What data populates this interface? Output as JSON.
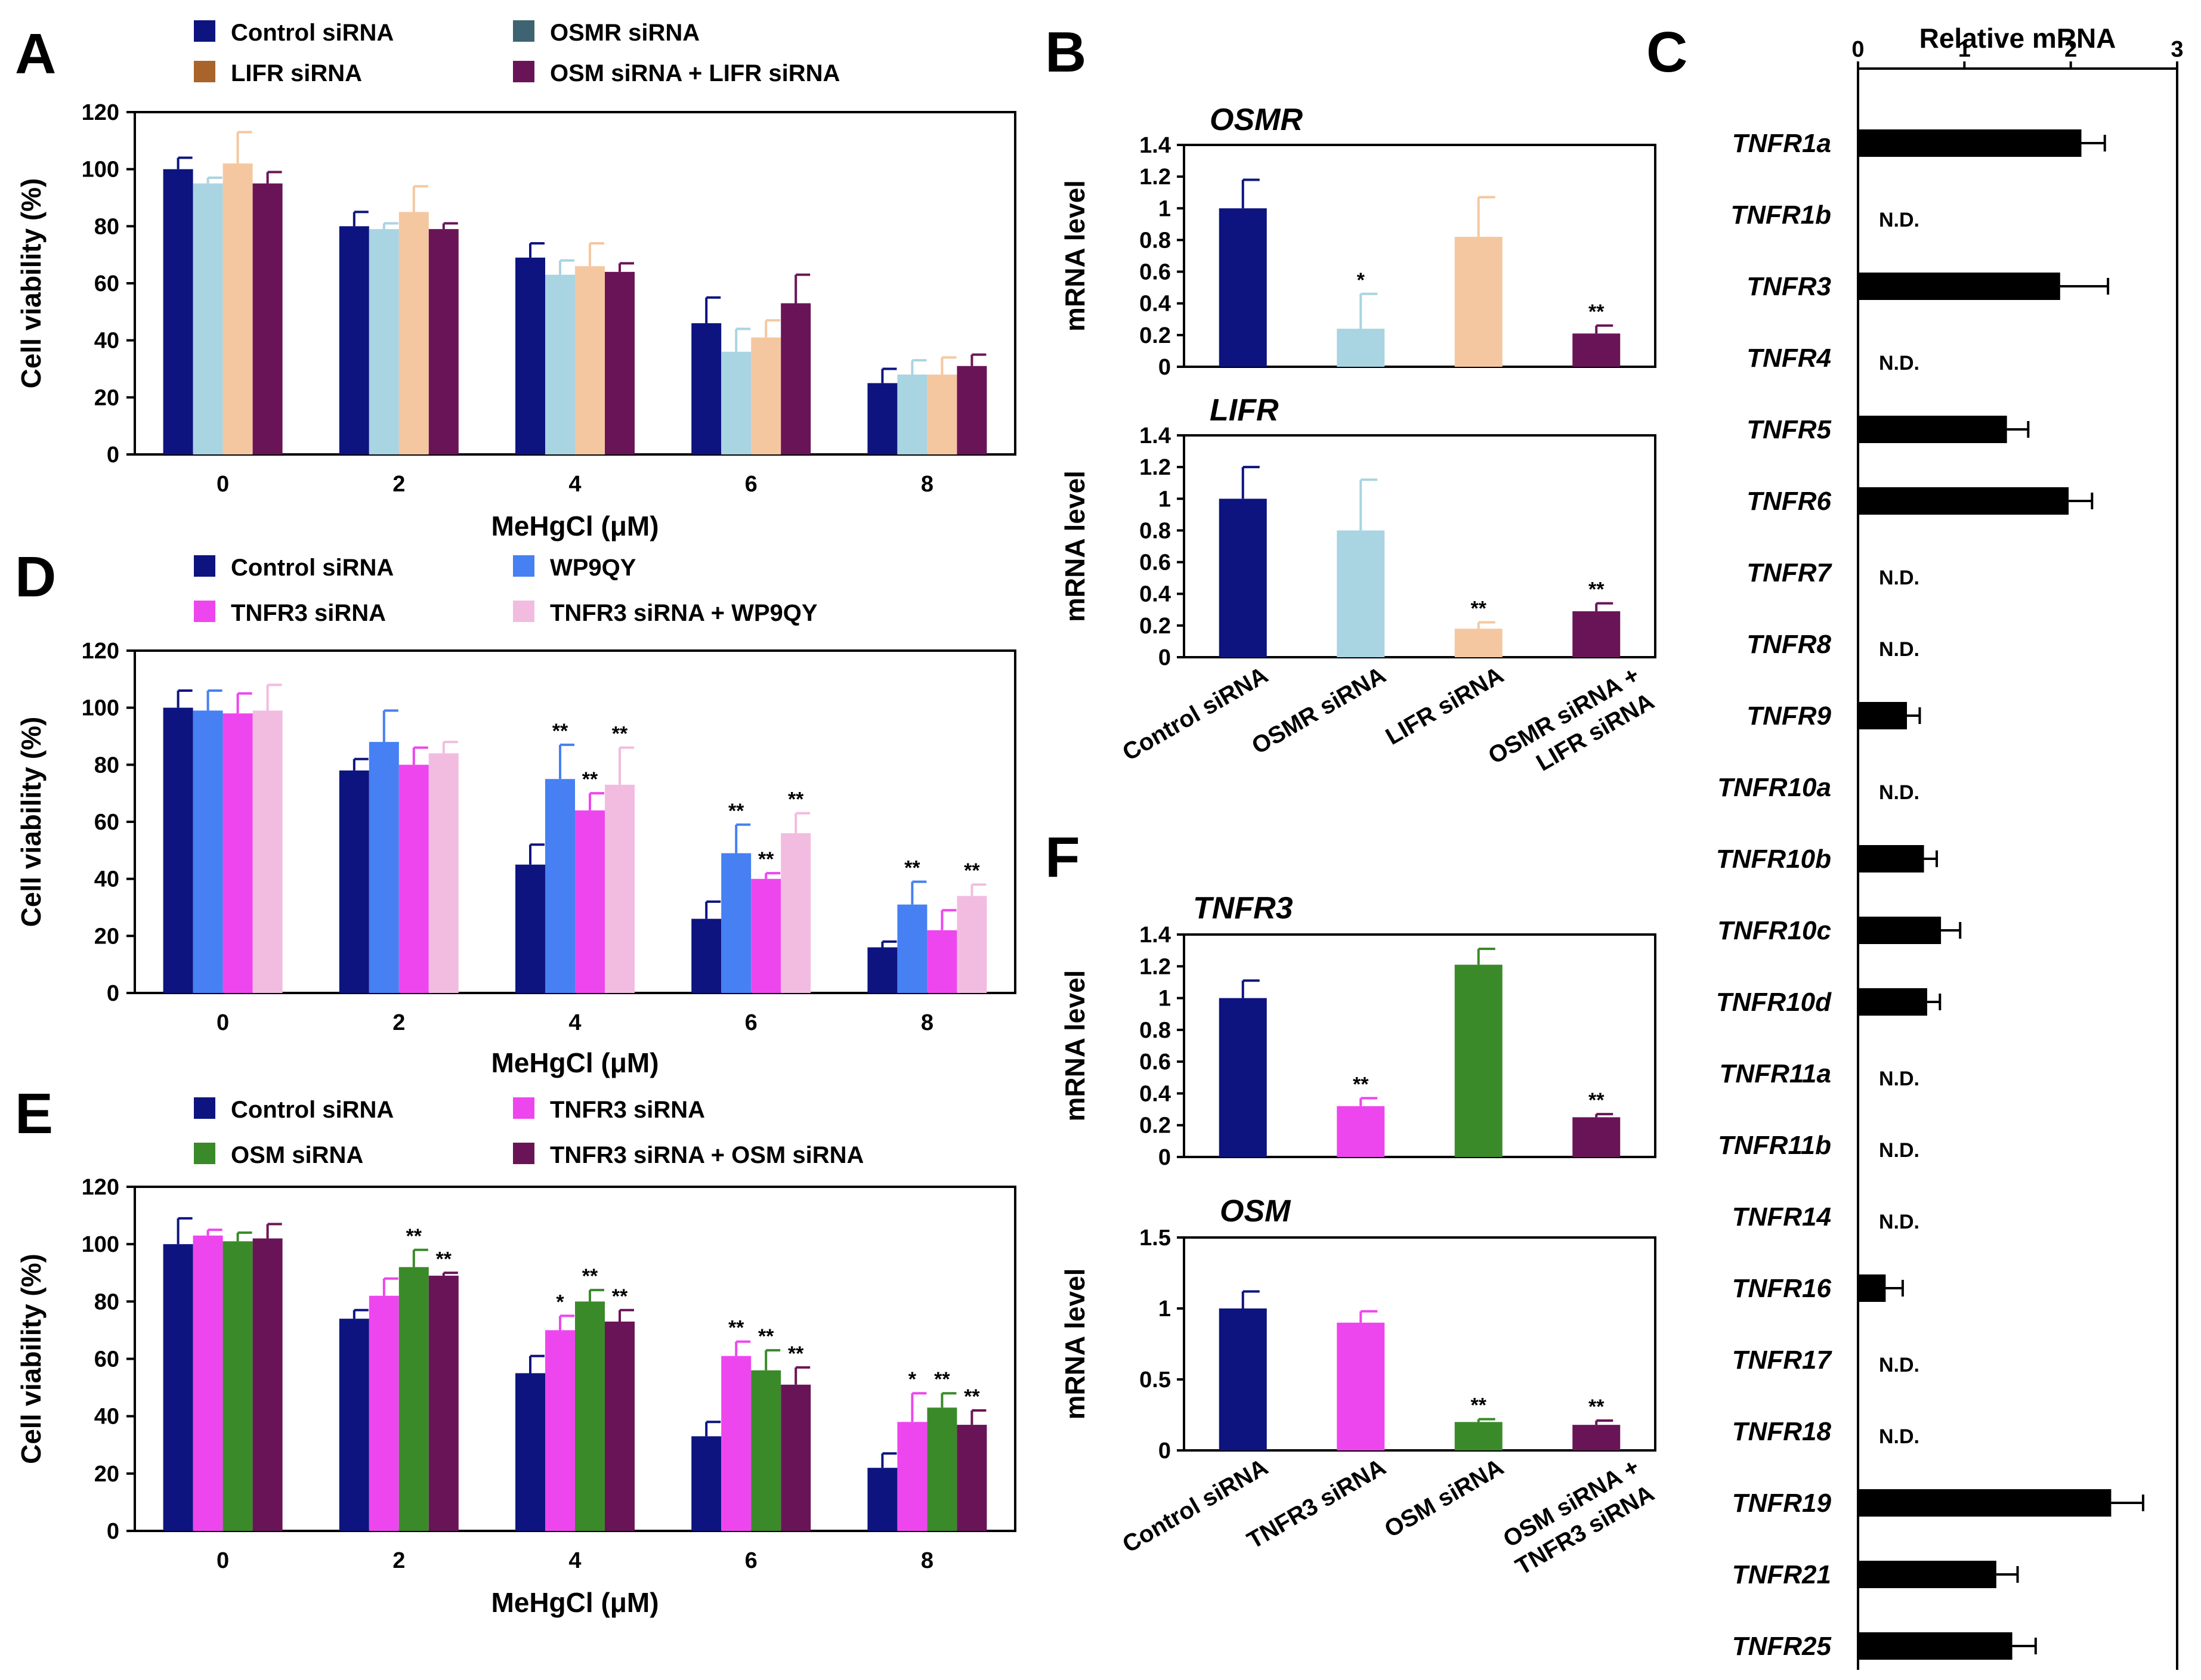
{
  "colors": {
    "navy": "#0d147f",
    "lightblue": "#a9d4e2",
    "peach": "#f5c7a0",
    "purple": "#6a1458",
    "blue": "#4680f2",
    "magenta": "#ee46ee",
    "pink": "#f2bce0",
    "green": "#3a8a2a",
    "legend_osmr": "#3d6470",
    "legend_lifr": "#a8642a",
    "black": "#000000"
  },
  "chart_data": [
    {
      "id": "A",
      "letter": "A",
      "type": "bar",
      "categories": [
        "0",
        "2",
        "4",
        "6",
        "8"
      ],
      "xlabel": "MeHgCl (μM)",
      "ylabel": "Cell viability (%)",
      "ylim": [
        0,
        120
      ],
      "yticks": [
        "0",
        "20",
        "40",
        "60",
        "80",
        "100",
        "120"
      ],
      "legend": [
        {
          "label": "Control siRNA",
          "color": "#0d147f"
        },
        {
          "label": "OSMR siRNA",
          "color": "#3d6470"
        },
        {
          "label": "LIFR siRNA",
          "color": "#a8642a"
        },
        {
          "label": "OSM siRNA + LIFR siRNA",
          "color": "#6a1458"
        }
      ],
      "series": [
        {
          "name": "Control siRNA",
          "color": "#0d147f",
          "values": [
            100,
            80,
            69,
            46,
            25
          ],
          "errors": [
            4,
            5,
            5,
            9,
            5
          ],
          "stars": [
            "",
            "",
            "",
            "",
            ""
          ]
        },
        {
          "name": "OSMR siRNA",
          "color": "#a9d4e2",
          "values": [
            95,
            79,
            63,
            36,
            28
          ],
          "errors": [
            2,
            2,
            5,
            8,
            5
          ],
          "stars": [
            "",
            "",
            "",
            "",
            ""
          ]
        },
        {
          "name": "LIFR siRNA",
          "color": "#f5c7a0",
          "values": [
            102,
            85,
            66,
            41,
            28
          ],
          "errors": [
            11,
            9,
            8,
            6,
            6
          ],
          "stars": [
            "",
            "",
            "",
            "",
            ""
          ]
        },
        {
          "name": "OSM siRNA + LIFR siRNA",
          "color": "#6a1458",
          "values": [
            95,
            79,
            64,
            53,
            31
          ],
          "errors": [
            4,
            2,
            3,
            10,
            4
          ],
          "stars": [
            "",
            "",
            "",
            "",
            ""
          ]
        }
      ]
    },
    {
      "id": "D",
      "letter": "D",
      "type": "bar",
      "categories": [
        "0",
        "2",
        "4",
        "6",
        "8"
      ],
      "xlabel": "MeHgCl (μM)",
      "ylabel": "Cell viability (%)",
      "ylim": [
        0,
        120
      ],
      "yticks": [
        "0",
        "20",
        "40",
        "60",
        "80",
        "100",
        "120"
      ],
      "legend": [
        {
          "label": "Control siRNA",
          "color": "#0d147f"
        },
        {
          "label": "WP9QY",
          "color": "#4680f2"
        },
        {
          "label": "TNFR3 siRNA",
          "color": "#ee46ee"
        },
        {
          "label": "TNFR3 siRNA + WP9QY",
          "color": "#f2bce0"
        }
      ],
      "series": [
        {
          "name": "Control siRNA",
          "color": "#0d147f",
          "values": [
            100,
            78,
            45,
            26,
            16
          ],
          "errors": [
            6,
            4,
            7,
            6,
            2
          ],
          "stars": [
            "",
            "",
            "",
            "",
            ""
          ]
        },
        {
          "name": "WP9QY",
          "color": "#4680f2",
          "values": [
            99,
            88,
            75,
            49,
            31
          ],
          "errors": [
            7,
            11,
            12,
            10,
            8
          ],
          "stars": [
            "",
            "",
            "**",
            "**",
            "**"
          ]
        },
        {
          "name": "TNFR3 siRNA",
          "color": "#ee46ee",
          "values": [
            98,
            80,
            64,
            40,
            22
          ],
          "errors": [
            7,
            6,
            6,
            2,
            7
          ],
          "stars": [
            "",
            "",
            "**",
            "**",
            ""
          ]
        },
        {
          "name": "TNFR3 siRNA + WP9QY",
          "color": "#f2bce0",
          "values": [
            99,
            84,
            73,
            56,
            34
          ],
          "errors": [
            9,
            4,
            13,
            7,
            4
          ],
          "stars": [
            "",
            "",
            "**",
            "**",
            "**"
          ]
        }
      ]
    },
    {
      "id": "E",
      "letter": "E",
      "type": "bar",
      "categories": [
        "0",
        "2",
        "4",
        "6",
        "8"
      ],
      "xlabel": "MeHgCl (μM)",
      "ylabel": "Cell viability (%)",
      "ylim": [
        0,
        120
      ],
      "yticks": [
        "0",
        "20",
        "40",
        "60",
        "80",
        "100",
        "120"
      ],
      "legend": [
        {
          "label": "Control siRNA",
          "color": "#0d147f"
        },
        {
          "label": "TNFR3 siRNA",
          "color": "#ee46ee"
        },
        {
          "label": "OSM siRNA",
          "color": "#3a8a2a"
        },
        {
          "label": "TNFR3 siRNA + OSM siRNA",
          "color": "#6a1458"
        }
      ],
      "series": [
        {
          "name": "Control siRNA",
          "color": "#0d147f",
          "values": [
            100,
            74,
            55,
            33,
            22
          ],
          "errors": [
            9,
            3,
            6,
            5,
            5
          ],
          "stars": [
            "",
            "",
            "",
            "",
            ""
          ]
        },
        {
          "name": "TNFR3 siRNA",
          "color": "#ee46ee",
          "values": [
            103,
            82,
            70,
            61,
            38
          ],
          "errors": [
            2,
            6,
            5,
            5,
            10
          ],
          "stars": [
            "",
            "",
            "*",
            "**",
            "*"
          ]
        },
        {
          "name": "OSM siRNA",
          "color": "#3a8a2a",
          "values": [
            101,
            92,
            80,
            56,
            43
          ],
          "errors": [
            3,
            6,
            4,
            7,
            5
          ],
          "stars": [
            "",
            "**",
            "**",
            "**",
            "**"
          ]
        },
        {
          "name": "TNFR3 siRNA + OSM siRNA",
          "color": "#6a1458",
          "values": [
            102,
            89,
            73,
            51,
            37
          ],
          "errors": [
            5,
            1,
            4,
            6,
            5
          ],
          "stars": [
            "",
            "**",
            "**",
            "**",
            "**"
          ]
        }
      ]
    },
    {
      "id": "B1",
      "letter": "B",
      "type": "bar",
      "title": "OSMR",
      "ylabel": "mRNA level",
      "ylim": [
        0,
        1.4
      ],
      "yticks": [
        "0",
        "0.2",
        "0.4",
        "0.6",
        "0.8",
        "1",
        "1.2",
        "1.4"
      ],
      "bars": [
        {
          "value": 1.0,
          "error": 0.18,
          "color": "#0d147f",
          "star": ""
        },
        {
          "value": 0.24,
          "error": 0.22,
          "color": "#a9d4e2",
          "star": "*"
        },
        {
          "value": 0.82,
          "error": 0.25,
          "color": "#f5c7a0",
          "star": ""
        },
        {
          "value": 0.21,
          "error": 0.05,
          "color": "#6a1458",
          "star": "**"
        }
      ]
    },
    {
      "id": "B2",
      "letter": "",
      "type": "bar",
      "title": "LIFR",
      "ylabel": "mRNA level",
      "ylim": [
        0,
        1.4
      ],
      "yticks": [
        "0",
        "0.2",
        "0.4",
        "0.6",
        "0.8",
        "1",
        "1.2",
        "1.4"
      ],
      "categories": [
        "Control siRNA",
        "OSMR siRNA",
        "LIFR siRNA",
        "OSMR siRNA +",
        "LIFR siRNA"
      ],
      "bars": [
        {
          "value": 1.0,
          "error": 0.2,
          "color": "#0d147f",
          "star": ""
        },
        {
          "value": 0.8,
          "error": 0.32,
          "color": "#a9d4e2",
          "star": ""
        },
        {
          "value": 0.18,
          "error": 0.04,
          "color": "#f5c7a0",
          "star": "**"
        },
        {
          "value": 0.29,
          "error": 0.05,
          "color": "#6a1458",
          "star": "**"
        }
      ]
    },
    {
      "id": "F1",
      "letter": "F",
      "type": "bar",
      "title": "TNFR3",
      "ylabel": "mRNA level",
      "ylim": [
        0,
        1.4
      ],
      "yticks": [
        "0",
        "0.2",
        "0.4",
        "0.6",
        "0.8",
        "1",
        "1.2",
        "1.4"
      ],
      "bars": [
        {
          "value": 1.0,
          "error": 0.11,
          "color": "#0d147f",
          "star": ""
        },
        {
          "value": 0.32,
          "error": 0.05,
          "color": "#ee46ee",
          "star": "**"
        },
        {
          "value": 1.21,
          "error": 0.1,
          "color": "#3a8a2a",
          "star": ""
        },
        {
          "value": 0.25,
          "error": 0.02,
          "color": "#6a1458",
          "star": "**"
        }
      ]
    },
    {
      "id": "F2",
      "letter": "",
      "type": "bar",
      "title": "OSM",
      "ylabel": "mRNA level",
      "ylim": [
        0,
        1.5
      ],
      "yticks": [
        "0",
        "0.5",
        "1",
        "1.5"
      ],
      "categories": [
        "Control siRNA",
        "TNFR3 siRNA",
        "OSM siRNA",
        "OSM siRNA +",
        "TNFR3 siRNA"
      ],
      "bars": [
        {
          "value": 1.0,
          "error": 0.12,
          "color": "#0d147f",
          "star": ""
        },
        {
          "value": 0.9,
          "error": 0.08,
          "color": "#ee46ee",
          "star": ""
        },
        {
          "value": 0.2,
          "error": 0.02,
          "color": "#3a8a2a",
          "star": "**"
        },
        {
          "value": 0.18,
          "error": 0.03,
          "color": "#6a1458",
          "star": "**"
        }
      ]
    },
    {
      "id": "C",
      "letter": "C",
      "type": "bar",
      "orientation": "horizontal",
      "xlabel": "Relative mRNA",
      "xlim": [
        0,
        3
      ],
      "xticks": [
        "0",
        "1",
        "2",
        "3"
      ],
      "nd_label": "N.D.",
      "rows": [
        {
          "label": "TNFR1a",
          "value": 2.1,
          "error": 0.22
        },
        {
          "label": "TNFR1b",
          "value": null,
          "error": null
        },
        {
          "label": "TNFR3",
          "value": 1.9,
          "error": 0.45
        },
        {
          "label": "TNFR4",
          "value": null,
          "error": null
        },
        {
          "label": "TNFR5",
          "value": 1.4,
          "error": 0.2
        },
        {
          "label": "TNFR6",
          "value": 1.98,
          "error": 0.22
        },
        {
          "label": "TNFR7",
          "value": null,
          "error": null
        },
        {
          "label": "TNFR8",
          "value": null,
          "error": null
        },
        {
          "label": "TNFR9",
          "value": 0.46,
          "error": 0.12
        },
        {
          "label": "TNFR10a",
          "value": null,
          "error": null
        },
        {
          "label": "TNFR10b",
          "value": 0.62,
          "error": 0.12
        },
        {
          "label": "TNFR10c",
          "value": 0.78,
          "error": 0.18
        },
        {
          "label": "TNFR10d",
          "value": 0.65,
          "error": 0.12
        },
        {
          "label": "TNFR11a",
          "value": null,
          "error": null
        },
        {
          "label": "TNFR11b",
          "value": null,
          "error": null
        },
        {
          "label": "TNFR14",
          "value": null,
          "error": null
        },
        {
          "label": "TNFR16",
          "value": 0.26,
          "error": 0.16
        },
        {
          "label": "TNFR17",
          "value": null,
          "error": null
        },
        {
          "label": "TNFR18",
          "value": null,
          "error": null
        },
        {
          "label": "TNFR19",
          "value": 2.38,
          "error": 0.3
        },
        {
          "label": "TNFR21",
          "value": 1.3,
          "error": 0.2
        },
        {
          "label": "TNFR25",
          "value": 1.45,
          "error": 0.22
        }
      ]
    }
  ]
}
